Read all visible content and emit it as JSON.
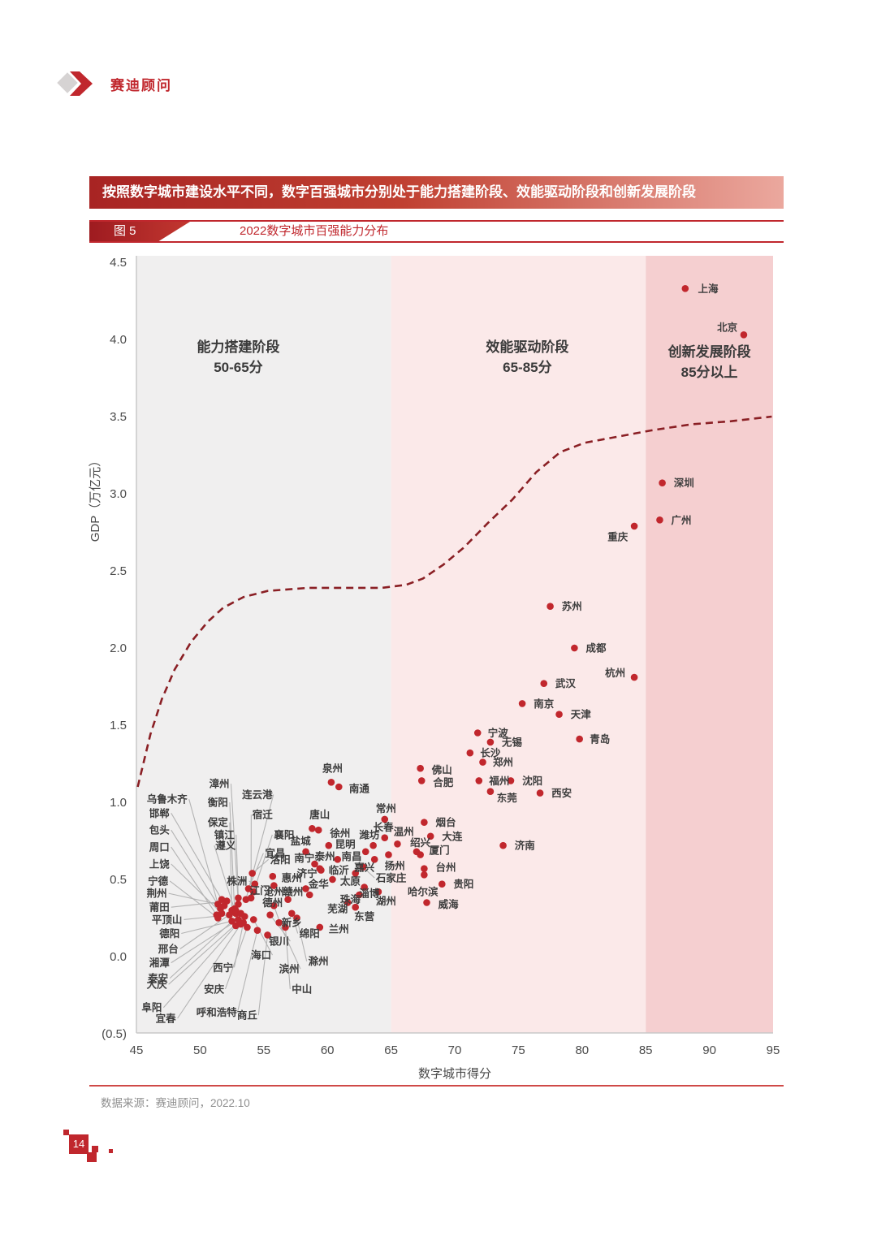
{
  "page": {
    "logo_text": "赛迪顾问",
    "banner": "按照数字城市建设水平不同，数字百强城市分别处于能力搭建阶段、效能驱动阶段和创新发展阶段",
    "figure_tag": "图 5",
    "figure_title": "2022数字城市百强能力分布",
    "source": "数据来源：赛迪顾问，2022.10",
    "page_number": "14"
  },
  "colors": {
    "accent_red": "#c0272d",
    "curve_red": "#8a1f24",
    "zone_build": "#f0efef",
    "zone_drive": "#fbe9e9",
    "zone_innovate": "#f5cfd0",
    "dot": "#c1272d",
    "leader": "#b3b3b3",
    "axis_text": "#4a4a4a",
    "label_text": "#3d3d3d"
  },
  "chart_data": {
    "type": "scatter",
    "title": "2022数字城市百强能力分布",
    "xlabel": "数字城市得分",
    "ylabel": "GDP（万亿元）",
    "xlim": [
      45,
      95
    ],
    "ylim": [
      -0.5,
      4.5
    ],
    "x_ticks": [
      45,
      50,
      55,
      60,
      65,
      70,
      75,
      80,
      85,
      90,
      95
    ],
    "y_ticks": [
      4.5,
      4.0,
      3.5,
      3.0,
      2.5,
      2.0,
      1.5,
      1.0,
      0.5,
      0.0,
      -0.5
    ],
    "y_tick_labels": [
      "4.5",
      "4.0",
      "3.5",
      "3.0",
      "2.5",
      "2.0",
      "1.5",
      "1.0",
      "0.5",
      "0.0",
      "(0.5)"
    ],
    "grid": false,
    "zones": [
      {
        "name": "能力搭建阶段",
        "range_label": "50-65分",
        "from": 45,
        "to": 65,
        "color": "#f0efef",
        "label_score": 53.0,
        "label_gdp": 3.92
      },
      {
        "name": "效能驱动阶段",
        "range_label": "65-85分",
        "from": 65,
        "to": 85,
        "color": "#fbe9e9",
        "label_score": 75.7,
        "label_gdp": 3.92
      },
      {
        "name": "创新发展阶段",
        "range_label": "85分以上",
        "from": 85,
        "to": 95,
        "color": "#f5cfd0",
        "label_score": 90.0,
        "label_gdp": 3.89
      }
    ],
    "trend_curve": [
      [
        45.1,
        1.1
      ],
      [
        46.1,
        1.44
      ],
      [
        47.0,
        1.67
      ],
      [
        48.0,
        1.86
      ],
      [
        49.3,
        2.04
      ],
      [
        50.6,
        2.17
      ],
      [
        51.8,
        2.26
      ],
      [
        53.4,
        2.33
      ],
      [
        55.3,
        2.37
      ],
      [
        58.5,
        2.39
      ],
      [
        61.7,
        2.39
      ],
      [
        64.3,
        2.39
      ],
      [
        66.2,
        2.41
      ],
      [
        67.5,
        2.45
      ],
      [
        69.1,
        2.54
      ],
      [
        70.7,
        2.65
      ],
      [
        72.6,
        2.81
      ],
      [
        74.5,
        2.96
      ],
      [
        76.4,
        3.14
      ],
      [
        78.3,
        3.27
      ],
      [
        80.2,
        3.33
      ],
      [
        82.8,
        3.37
      ],
      [
        85.4,
        3.41
      ],
      [
        88.6,
        3.45
      ],
      [
        91.7,
        3.47
      ],
      [
        94.9,
        3.5
      ]
    ],
    "cities": [
      {
        "n": "上海",
        "s": 88.1,
        "g": 4.33,
        "lx": 89.1,
        "ly": 4.33,
        "a": "s",
        "l": 0
      },
      {
        "n": "北京",
        "s": 92.7,
        "g": 4.03,
        "lx": 92.2,
        "ly": 4.08,
        "a": "e",
        "l": 0
      },
      {
        "n": "深圳",
        "s": 86.3,
        "g": 3.07,
        "lx": 87.2,
        "ly": 3.07,
        "a": "s",
        "l": 0
      },
      {
        "n": "广州",
        "s": 86.1,
        "g": 2.83,
        "lx": 87.0,
        "ly": 2.83,
        "a": "s",
        "l": 0
      },
      {
        "n": "重庆",
        "s": 84.1,
        "g": 2.79,
        "lx": 83.6,
        "ly": 2.72,
        "a": "e",
        "l": 0
      },
      {
        "n": "苏州",
        "s": 77.5,
        "g": 2.27,
        "lx": 78.4,
        "ly": 2.27,
        "a": "s",
        "l": 0
      },
      {
        "n": "成都",
        "s": 79.4,
        "g": 2.0,
        "lx": 80.3,
        "ly": 2.0,
        "a": "s",
        "l": 0
      },
      {
        "n": "杭州",
        "s": 84.1,
        "g": 1.81,
        "lx": 83.4,
        "ly": 1.84,
        "a": "e",
        "l": 0
      },
      {
        "n": "武汉",
        "s": 77.0,
        "g": 1.77,
        "lx": 77.9,
        "ly": 1.77,
        "a": "s",
        "l": 0
      },
      {
        "n": "南京",
        "s": 75.3,
        "g": 1.64,
        "lx": 76.2,
        "ly": 1.64,
        "a": "s",
        "l": 0
      },
      {
        "n": "天津",
        "s": 78.2,
        "g": 1.57,
        "lx": 79.1,
        "ly": 1.57,
        "a": "s",
        "l": 0
      },
      {
        "n": "青岛",
        "s": 79.8,
        "g": 1.41,
        "lx": 80.6,
        "ly": 1.41,
        "a": "s",
        "l": 0
      },
      {
        "n": "宁波",
        "s": 71.8,
        "g": 1.45,
        "lx": 72.6,
        "ly": 1.45,
        "a": "s",
        "l": 0
      },
      {
        "n": "无锡",
        "s": 72.8,
        "g": 1.39,
        "lx": 73.7,
        "ly": 1.39,
        "a": "s",
        "l": 0
      },
      {
        "n": "长沙",
        "s": 71.2,
        "g": 1.32,
        "lx": 72.0,
        "ly": 1.32,
        "a": "s",
        "l": 0
      },
      {
        "n": "郑州",
        "s": 72.2,
        "g": 1.26,
        "lx": 73.0,
        "ly": 1.26,
        "a": "s",
        "l": 0
      },
      {
        "n": "福州",
        "s": 71.9,
        "g": 1.14,
        "lx": 72.7,
        "ly": 1.14,
        "a": "s",
        "l": 0
      },
      {
        "n": "沈阳",
        "s": 74.4,
        "g": 1.14,
        "lx": 75.3,
        "ly": 1.14,
        "a": "s",
        "l": 0
      },
      {
        "n": "东莞",
        "s": 72.8,
        "g": 1.07,
        "lx": 73.3,
        "ly": 1.03,
        "a": "s",
        "l": 0
      },
      {
        "n": "西安",
        "s": 76.7,
        "g": 1.06,
        "lx": 77.6,
        "ly": 1.06,
        "a": "s",
        "l": 0
      },
      {
        "n": "济南",
        "s": 73.8,
        "g": 0.72,
        "lx": 74.7,
        "ly": 0.72,
        "a": "s",
        "l": 0
      },
      {
        "n": "泉州",
        "s": 60.3,
        "g": 1.13,
        "lx": 60.4,
        "ly": 1.22,
        "a": "m",
        "l": 0
      },
      {
        "n": "南通",
        "s": 60.9,
        "g": 1.1,
        "lx": 61.7,
        "ly": 1.09,
        "a": "s",
        "l": 0
      },
      {
        "n": "佛山",
        "s": 67.3,
        "g": 1.22,
        "lx": 68.2,
        "ly": 1.21,
        "a": "s",
        "l": 0
      },
      {
        "n": "合肥",
        "s": 67.4,
        "g": 1.14,
        "lx": 68.3,
        "ly": 1.13,
        "a": "s",
        "l": 0
      },
      {
        "n": "烟台",
        "s": 67.6,
        "g": 0.87,
        "lx": 68.5,
        "ly": 0.87,
        "a": "s",
        "l": 0
      },
      {
        "n": "大连",
        "s": 68.1,
        "g": 0.78,
        "lx": 69.0,
        "ly": 0.78,
        "a": "s",
        "l": 0
      },
      {
        "n": "常州",
        "s": 64.5,
        "g": 0.89,
        "lx": 64.6,
        "ly": 0.96,
        "a": "m",
        "l": 0
      },
      {
        "n": "温州",
        "s": 65.5,
        "g": 0.73,
        "lx": 66.0,
        "ly": 0.81,
        "a": "m",
        "l": 0
      },
      {
        "n": "绍兴",
        "s": 67.0,
        "g": 0.68,
        "lx": 67.3,
        "ly": 0.74,
        "a": "m",
        "l": 0
      },
      {
        "n": "厦门",
        "s": 67.3,
        "g": 0.66,
        "lx": 68.0,
        "ly": 0.69,
        "a": "s",
        "l": 0
      },
      {
        "n": "台州",
        "s": 67.6,
        "g": 0.57,
        "lx": 68.5,
        "ly": 0.58,
        "a": "s",
        "l": 0
      },
      {
        "n": "哈尔滨",
        "s": 67.6,
        "g": 0.53,
        "lx": 67.5,
        "ly": 0.42,
        "a": "m",
        "l": 0
      },
      {
        "n": "贵阳",
        "s": 69.0,
        "g": 0.47,
        "lx": 69.9,
        "ly": 0.47,
        "a": "s",
        "l": 0
      },
      {
        "n": "威海",
        "s": 67.8,
        "g": 0.35,
        "lx": 68.7,
        "ly": 0.34,
        "a": "s",
        "l": 0
      },
      {
        "n": "长春",
        "s": 64.5,
        "g": 0.77,
        "lx": 64.4,
        "ly": 0.84,
        "a": "m",
        "l": 0
      },
      {
        "n": "潍坊",
        "s": 63.6,
        "g": 0.72,
        "lx": 63.3,
        "ly": 0.79,
        "a": "m",
        "l": 0
      },
      {
        "n": "徐州",
        "s": 59.3,
        "g": 0.82,
        "lx": 60.2,
        "ly": 0.8,
        "a": "s",
        "l": 0
      },
      {
        "n": "唐山",
        "s": 58.8,
        "g": 0.83,
        "lx": 59.4,
        "ly": 0.92,
        "a": "m",
        "l": 0
      },
      {
        "n": "昆明",
        "s": 60.1,
        "g": 0.72,
        "lx": 60.6,
        "ly": 0.73,
        "a": "s",
        "l": 0
      },
      {
        "n": "泰州",
        "s": 60.8,
        "g": 0.63,
        "lx": 60.6,
        "ly": 0.65,
        "a": "e",
        "l": 0
      },
      {
        "n": "南昌",
        "s": 63.0,
        "g": 0.68,
        "lx": 62.7,
        "ly": 0.65,
        "a": "e",
        "l": 0
      },
      {
        "n": "嘉兴",
        "s": 63.7,
        "g": 0.63,
        "lx": 63.7,
        "ly": 0.58,
        "a": "e",
        "l": 0
      },
      {
        "n": "扬州",
        "s": 64.8,
        "g": 0.66,
        "lx": 65.3,
        "ly": 0.59,
        "a": "m",
        "l": 0
      },
      {
        "n": "石家庄",
        "s": 62.8,
        "g": 0.58,
        "lx": 65.0,
        "ly": 0.51,
        "a": "m",
        "l": 1
      },
      {
        "n": "临沂",
        "s": 59.4,
        "g": 0.57,
        "lx": 60.1,
        "ly": 0.56,
        "a": "s",
        "l": 0
      },
      {
        "n": "太原",
        "s": 62.2,
        "g": 0.54,
        "lx": 61.8,
        "ly": 0.49,
        "a": "m",
        "l": 0
      },
      {
        "n": "金华",
        "s": 60.4,
        "g": 0.5,
        "lx": 60.1,
        "ly": 0.47,
        "a": "e",
        "l": 0
      },
      {
        "n": "珠海",
        "s": 62.5,
        "g": 0.4,
        "lx": 61.8,
        "ly": 0.37,
        "a": "m",
        "l": 0
      },
      {
        "n": "淄博",
        "s": 62.9,
        "g": 0.45,
        "lx": 63.3,
        "ly": 0.41,
        "a": "m",
        "l": 0
      },
      {
        "n": "湖州",
        "s": 64.0,
        "g": 0.42,
        "lx": 64.6,
        "ly": 0.36,
        "a": "m",
        "l": 0
      },
      {
        "n": "芜湖",
        "s": 61.6,
        "g": 0.35,
        "lx": 60.8,
        "ly": 0.31,
        "a": "m",
        "l": 0
      },
      {
        "n": "东营",
        "s": 62.2,
        "g": 0.32,
        "lx": 62.9,
        "ly": 0.26,
        "a": "m",
        "l": 0
      },
      {
        "n": "兰州",
        "s": 59.4,
        "g": 0.19,
        "lx": 60.1,
        "ly": 0.18,
        "a": "s",
        "l": 0
      },
      {
        "n": "滁州",
        "s": 57.6,
        "g": 0.25,
        "lx": 58.5,
        "ly": -0.03,
        "a": "s",
        "l": 1
      },
      {
        "n": "绵阳",
        "s": 57.2,
        "g": 0.28,
        "lx": 57.8,
        "ly": 0.15,
        "a": "s",
        "l": 1
      },
      {
        "n": "新乡",
        "s": 55.8,
        "g": 0.33,
        "lx": 56.4,
        "ly": 0.22,
        "a": "s",
        "l": 1
      },
      {
        "n": "银川",
        "s": 55.5,
        "g": 0.27,
        "lx": 55.4,
        "ly": 0.1,
        "a": "s",
        "l": 1
      },
      {
        "n": "海口",
        "s": 54.2,
        "g": 0.24,
        "lx": 54.0,
        "ly": 0.01,
        "a": "s",
        "l": 1
      },
      {
        "n": "滨州",
        "s": 56.2,
        "g": 0.22,
        "lx": 56.2,
        "ly": -0.08,
        "a": "s",
        "l": 1
      },
      {
        "n": "中山",
        "s": 56.7,
        "g": 0.19,
        "lx": 57.2,
        "ly": -0.21,
        "a": "s",
        "l": 1
      },
      {
        "n": "西宁",
        "s": 53.4,
        "g": 0.22,
        "lx": 51.0,
        "ly": -0.07,
        "a": "s",
        "l": 1
      },
      {
        "n": "安庆",
        "s": 53.7,
        "g": 0.19,
        "lx": 50.3,
        "ly": -0.21,
        "a": "s",
        "l": 1
      },
      {
        "n": "呼和浩特",
        "s": 54.5,
        "g": 0.17,
        "lx": 49.7,
        "ly": -0.36,
        "a": "s",
        "l": 1
      },
      {
        "n": "商丘",
        "s": 55.3,
        "g": 0.14,
        "lx": 52.9,
        "ly": -0.38,
        "a": "s",
        "l": 1
      },
      {
        "n": "德州",
        "s": 56.9,
        "g": 0.37,
        "lx": 56.5,
        "ly": 0.35,
        "a": "e",
        "l": 0
      },
      {
        "n": "沧州",
        "s": 58.3,
        "g": 0.44,
        "lx": 56.6,
        "ly": 0.42,
        "a": "e",
        "l": 1
      },
      {
        "n": "赣州",
        "s": 58.6,
        "g": 0.4,
        "lx": 58.1,
        "ly": 0.42,
        "a": "e",
        "l": 0
      },
      {
        "n": "惠州",
        "s": 55.7,
        "g": 0.52,
        "lx": 56.4,
        "ly": 0.51,
        "a": "s",
        "l": 0
      },
      {
        "n": "济宁",
        "s": 59.5,
        "g": 0.56,
        "lx": 59.2,
        "ly": 0.54,
        "a": "e",
        "l": 0
      },
      {
        "n": "株洲",
        "s": 54.3,
        "g": 0.47,
        "lx": 53.7,
        "ly": 0.49,
        "a": "e",
        "l": 1
      },
      {
        "n": "江门",
        "s": 55.8,
        "g": 0.46,
        "lx": 55.5,
        "ly": 0.43,
        "a": "e",
        "l": 0
      },
      {
        "n": "洛阳",
        "s": 54.1,
        "g": 0.54,
        "lx": 55.5,
        "ly": 0.63,
        "a": "s",
        "l": 1
      },
      {
        "n": "南宁",
        "s": 59.0,
        "g": 0.6,
        "lx": 57.4,
        "ly": 0.64,
        "a": "s",
        "l": 1
      },
      {
        "n": "襄阳",
        "s": 54.2,
        "g": 0.42,
        "lx": 55.8,
        "ly": 0.79,
        "a": "s",
        "l": 1
      },
      {
        "n": "宜昌",
        "s": 53.8,
        "g": 0.44,
        "lx": 55.1,
        "ly": 0.67,
        "a": "s",
        "l": 1
      },
      {
        "n": "盐城",
        "s": 58.3,
        "g": 0.68,
        "lx": 57.9,
        "ly": 0.75,
        "a": "m",
        "l": 0
      },
      {
        "n": "漳州",
        "s": 53.0,
        "g": 0.34,
        "lx": 52.3,
        "ly": 1.12,
        "a": "e",
        "l": 1
      },
      {
        "n": "连云港",
        "s": 53.6,
        "g": 0.37,
        "lx": 53.3,
        "ly": 1.05,
        "a": "s",
        "l": 1
      },
      {
        "n": "乌鲁木齐",
        "s": 51.4,
        "g": 0.34,
        "lx": 49.0,
        "ly": 1.02,
        "a": "e",
        "l": 1
      },
      {
        "n": "衡阳",
        "s": 52.7,
        "g": 0.31,
        "lx": 52.2,
        "ly": 1.0,
        "a": "e",
        "l": 1
      },
      {
        "n": "邯郸",
        "s": 51.7,
        "g": 0.37,
        "lx": 47.6,
        "ly": 0.93,
        "a": "e",
        "l": 1
      },
      {
        "n": "宿迁",
        "s": 54.0,
        "g": 0.38,
        "lx": 55.7,
        "ly": 0.92,
        "a": "e",
        "l": 1
      },
      {
        "n": "保定",
        "s": 52.5,
        "g": 0.3,
        "lx": 52.2,
        "ly": 0.87,
        "a": "e",
        "l": 1
      },
      {
        "n": "包头",
        "s": 51.6,
        "g": 0.31,
        "lx": 47.6,
        "ly": 0.82,
        "a": "e",
        "l": 1
      },
      {
        "n": "镇江",
        "s": 53.0,
        "g": 0.38,
        "lx": 52.7,
        "ly": 0.79,
        "a": "e",
        "l": 1
      },
      {
        "n": "遵义",
        "s": 52.8,
        "g": 0.28,
        "lx": 52.8,
        "ly": 0.72,
        "a": "e",
        "l": 1
      },
      {
        "n": "周口",
        "s": 51.3,
        "g": 0.27,
        "lx": 47.6,
        "ly": 0.71,
        "a": "e",
        "l": 1
      },
      {
        "n": "上饶",
        "s": 51.7,
        "g": 0.28,
        "lx": 47.6,
        "ly": 0.6,
        "a": "e",
        "l": 1
      },
      {
        "n": "宁德",
        "s": 51.4,
        "g": 0.25,
        "lx": 47.5,
        "ly": 0.49,
        "a": "e",
        "l": 1
      },
      {
        "n": "荆州",
        "s": 51.9,
        "g": 0.33,
        "lx": 47.4,
        "ly": 0.41,
        "a": "e",
        "l": 1
      },
      {
        "n": "莆田",
        "s": 52.1,
        "g": 0.36,
        "lx": 47.6,
        "ly": 0.32,
        "a": "e",
        "l": 1
      },
      {
        "n": "平顶山",
        "s": 52.3,
        "g": 0.27,
        "lx": 48.6,
        "ly": 0.24,
        "a": "e",
        "l": 1
      },
      {
        "n": "德阳",
        "s": 52.5,
        "g": 0.23,
        "lx": 48.4,
        "ly": 0.15,
        "a": "e",
        "l": 1
      },
      {
        "n": "邢台",
        "s": 52.8,
        "g": 0.3,
        "lx": 48.3,
        "ly": 0.05,
        "a": "e",
        "l": 1
      },
      {
        "n": "湘潭",
        "s": 53.0,
        "g": 0.24,
        "lx": 47.6,
        "ly": -0.04,
        "a": "e",
        "l": 1
      },
      {
        "n": "泰安",
        "s": 53.2,
        "g": 0.28,
        "lx": 47.5,
        "ly": -0.14,
        "a": "e",
        "l": 1
      },
      {
        "n": "大庆",
        "s": 53.5,
        "g": 0.26,
        "lx": 47.4,
        "ly": -0.18,
        "a": "e",
        "l": 1
      },
      {
        "n": "阜阳",
        "s": 52.8,
        "g": 0.2,
        "lx": 47.0,
        "ly": -0.33,
        "a": "e",
        "l": 1
      },
      {
        "n": "宜春",
        "s": 53.2,
        "g": 0.21,
        "lx": 48.1,
        "ly": -0.4,
        "a": "e",
        "l": 1
      }
    ]
  }
}
